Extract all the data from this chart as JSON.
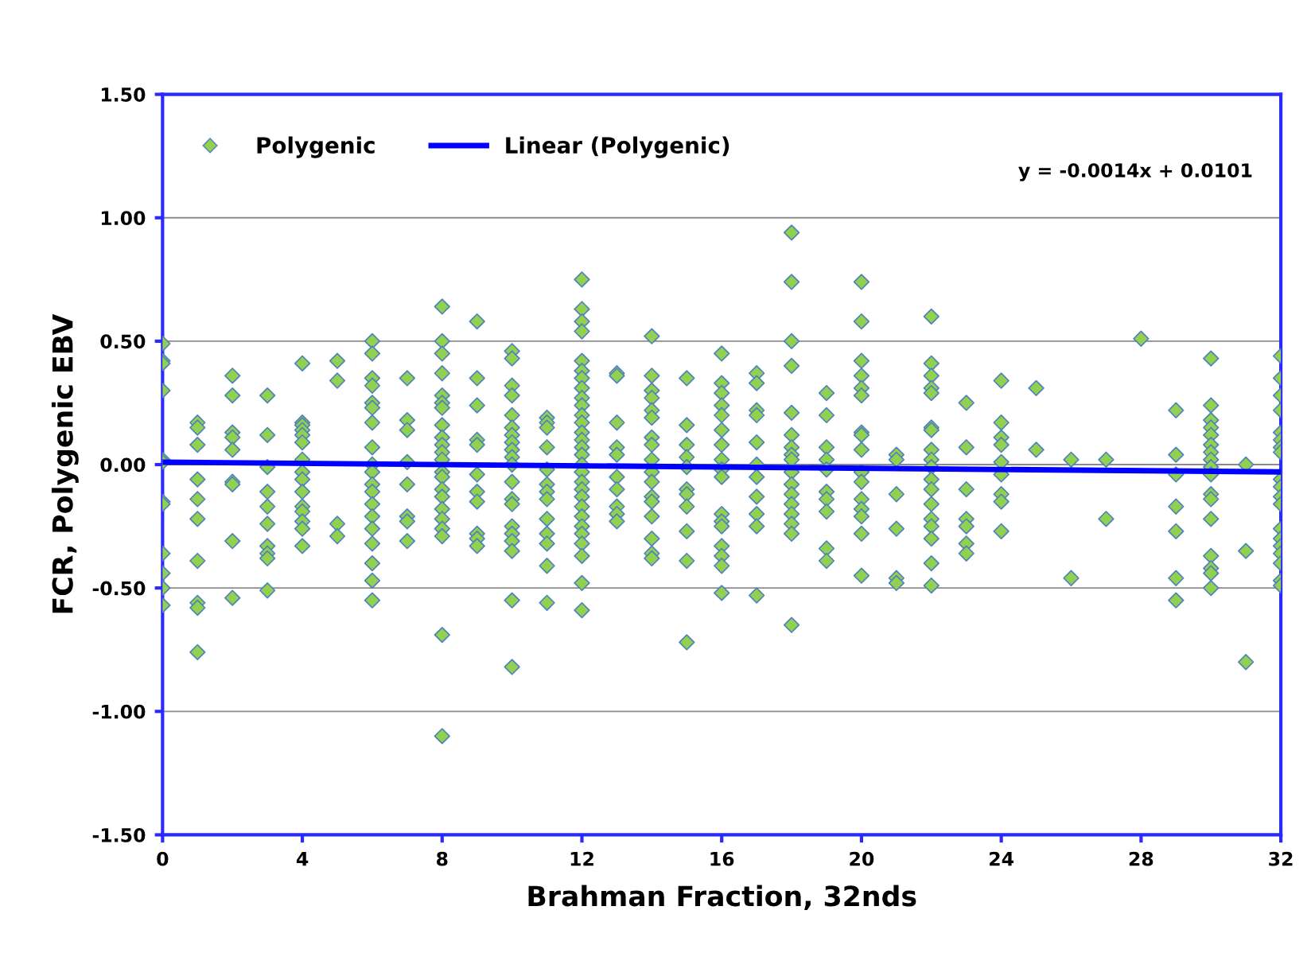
{
  "chart_data": {
    "type": "scatter",
    "xlabel": "Brahman Fraction, 32nds",
    "ylabel": "FCR, Polygenic EBV",
    "xlim": [
      0,
      32
    ],
    "xticks": [
      0,
      4,
      8,
      12,
      16,
      20,
      24,
      28,
      32
    ],
    "ylim": [
      -1.5,
      1.5
    ],
    "yticks": [
      {
        "value": -1.5,
        "label": "-1.50"
      },
      {
        "value": -1.0,
        "label": "-1.00"
      },
      {
        "value": -0.5,
        "label": "-0.50"
      },
      {
        "value": 0,
        "label": "0.00"
      },
      {
        "value": 0.5,
        "label": "0.50"
      },
      {
        "value": 1.0,
        "label": "1.00"
      },
      {
        "value": 1.5,
        "label": "1.50"
      }
    ],
    "grid": "y",
    "legend": "top left",
    "marker": "diamond",
    "annotations": [
      "y = -0.0014x + 0.0101"
    ],
    "series": [
      {
        "name": "Polygenic",
        "color": "#92d050",
        "x": [
          0,
          0,
          0,
          0,
          0,
          0,
          0,
          0,
          0,
          0,
          0,
          0,
          1,
          1,
          1,
          1,
          1,
          1,
          1,
          1,
          1,
          1,
          2,
          2,
          2,
          2,
          2,
          2,
          2,
          2,
          2,
          3,
          3,
          3,
          3,
          3,
          3,
          3,
          3,
          3,
          3,
          4,
          4,
          4,
          4,
          4,
          4,
          4,
          4,
          4,
          4,
          4,
          4,
          4,
          4,
          4,
          5,
          5,
          5,
          5,
          6,
          6,
          6,
          6,
          6,
          6,
          6,
          6,
          6,
          6,
          6,
          6,
          6,
          6,
          6,
          6,
          6,
          6,
          6,
          7,
          7,
          7,
          7,
          7,
          7,
          7,
          7,
          8,
          8,
          8,
          8,
          8,
          8,
          8,
          8,
          8,
          8,
          8,
          8,
          8,
          8,
          8,
          8,
          8,
          8,
          8,
          8,
          8,
          8,
          9,
          9,
          9,
          9,
          9,
          9,
          9,
          9,
          9,
          9,
          9,
          10,
          10,
          10,
          10,
          10,
          10,
          10,
          10,
          10,
          10,
          10,
          10,
          10,
          10,
          10,
          10,
          10,
          10,
          10,
          10,
          11,
          11,
          11,
          11,
          11,
          11,
          11,
          11,
          11,
          11,
          11,
          11,
          11,
          12,
          12,
          12,
          12,
          12,
          12,
          12,
          12,
          12,
          12,
          12,
          12,
          12,
          12,
          12,
          12,
          12,
          12,
          12,
          12,
          12,
          12,
          12,
          12,
          12,
          12,
          12,
          12,
          12,
          13,
          13,
          13,
          13,
          13,
          13,
          13,
          13,
          13,
          13,
          14,
          14,
          14,
          14,
          14,
          14,
          14,
          14,
          14,
          14,
          14,
          14,
          14,
          14,
          14,
          14,
          14,
          15,
          15,
          15,
          15,
          15,
          15,
          15,
          15,
          15,
          15,
          15,
          16,
          16,
          16,
          16,
          16,
          16,
          16,
          16,
          16,
          16,
          16,
          16,
          16,
          16,
          16,
          16,
          16,
          17,
          17,
          17,
          17,
          17,
          17,
          17,
          17,
          17,
          17,
          17,
          18,
          18,
          18,
          18,
          18,
          18,
          18,
          18,
          18,
          18,
          18,
          18,
          18,
          18,
          18,
          18,
          18,
          19,
          19,
          19,
          19,
          19,
          19,
          19,
          19,
          19,
          19,
          20,
          20,
          20,
          20,
          20,
          20,
          20,
          20,
          20,
          20,
          20,
          20,
          20,
          20,
          20,
          20,
          21,
          21,
          21,
          21,
          21,
          21,
          22,
          22,
          22,
          22,
          22,
          22,
          22,
          22,
          22,
          22,
          22,
          22,
          22,
          22,
          22,
          22,
          22,
          22,
          23,
          23,
          23,
          23,
          23,
          23,
          23,
          24,
          24,
          24,
          24,
          24,
          24,
          24,
          24,
          24,
          25,
          25,
          26,
          26,
          27,
          27,
          28,
          29,
          29,
          29,
          29,
          29,
          29,
          29,
          30,
          30,
          30,
          30,
          30,
          30,
          30,
          30,
          30,
          30,
          30,
          30,
          30,
          30,
          30,
          30,
          30,
          31,
          31,
          31,
          32,
          32,
          32,
          32,
          32,
          32,
          32,
          32,
          32,
          32,
          32,
          32,
          32,
          32,
          32,
          32,
          32,
          32,
          32
        ],
        "values": [
          0.49,
          0.42,
          0.41,
          0.3,
          0.02,
          0.01,
          -0.15,
          -0.16,
          -0.36,
          -0.44,
          -0.5,
          -0.57,
          0.17,
          0.15,
          0.08,
          -0.06,
          -0.14,
          -0.22,
          -0.39,
          -0.56,
          -0.58,
          -0.76,
          0.36,
          0.28,
          0.13,
          0.11,
          0.06,
          -0.07,
          -0.08,
          -0.31,
          -0.54,
          0.28,
          0.12,
          -0.01,
          -0.11,
          -0.17,
          -0.24,
          -0.33,
          -0.36,
          -0.38,
          -0.51,
          0.41,
          0.17,
          0.16,
          0.14,
          0.12,
          0.09,
          0.02,
          -0.03,
          -0.06,
          -0.11,
          -0.17,
          -0.19,
          -0.23,
          -0.26,
          -0.33,
          0.42,
          0.34,
          -0.24,
          -0.29,
          0.5,
          0.45,
          0.35,
          0.32,
          0.25,
          0.23,
          0.17,
          0.07,
          0.0,
          -0.03,
          -0.08,
          -0.11,
          -0.16,
          -0.21,
          -0.26,
          -0.32,
          -0.4,
          -0.47,
          -0.55,
          0.35,
          0.18,
          0.14,
          0.01,
          -0.08,
          -0.21,
          -0.23,
          -0.31,
          0.64,
          0.5,
          0.45,
          0.37,
          0.28,
          0.25,
          0.23,
          0.16,
          0.11,
          0.08,
          0.05,
          0.02,
          -0.03,
          -0.05,
          -0.1,
          -0.13,
          -0.18,
          -0.22,
          -0.26,
          -0.29,
          -0.69,
          -1.1,
          0.58,
          0.35,
          0.24,
          0.1,
          0.08,
          -0.04,
          -0.11,
          -0.15,
          -0.28,
          -0.3,
          -0.33,
          0.46,
          0.43,
          0.32,
          0.28,
          0.2,
          0.15,
          0.12,
          0.09,
          0.06,
          0.03,
          0.0,
          -0.07,
          -0.14,
          -0.16,
          -0.25,
          -0.28,
          -0.31,
          -0.35,
          -0.55,
          -0.82,
          0.19,
          0.17,
          0.15,
          0.07,
          -0.02,
          -0.08,
          -0.11,
          -0.14,
          -0.22,
          -0.28,
          -0.32,
          -0.41,
          -0.56,
          0.75,
          0.63,
          0.58,
          0.54,
          0.42,
          0.38,
          0.35,
          0.31,
          0.27,
          0.24,
          0.2,
          0.17,
          0.13,
          0.1,
          0.07,
          0.04,
          0.0,
          -0.03,
          -0.07,
          -0.1,
          -0.13,
          -0.17,
          -0.21,
          -0.25,
          -0.28,
          -0.32,
          -0.37,
          -0.48,
          -0.59,
          0.37,
          0.36,
          0.17,
          0.07,
          0.04,
          -0.05,
          -0.1,
          -0.17,
          -0.2,
          -0.23,
          0.52,
          0.36,
          0.3,
          0.27,
          0.22,
          0.19,
          0.11,
          0.08,
          0.02,
          -0.03,
          -0.07,
          -0.13,
          -0.15,
          -0.21,
          -0.3,
          -0.36,
          -0.38,
          0.35,
          0.16,
          0.08,
          0.03,
          -0.01,
          -0.1,
          -0.12,
          -0.17,
          -0.27,
          -0.39,
          -0.72,
          0.45,
          0.33,
          0.29,
          0.24,
          0.2,
          0.14,
          0.08,
          0.02,
          -0.02,
          -0.05,
          -0.2,
          -0.23,
          -0.25,
          -0.33,
          -0.37,
          -0.41,
          -0.52,
          0.37,
          0.33,
          0.22,
          0.2,
          0.09,
          0.0,
          -0.05,
          -0.13,
          -0.2,
          -0.25,
          -0.53,
          0.94,
          0.74,
          0.5,
          0.4,
          0.21,
          0.12,
          0.07,
          0.04,
          0.02,
          -0.03,
          -0.08,
          -0.12,
          -0.16,
          -0.2,
          -0.24,
          -0.28,
          -0.65,
          0.29,
          0.2,
          0.07,
          0.02,
          -0.02,
          -0.11,
          -0.14,
          -0.19,
          -0.34,
          -0.39,
          0.74,
          0.58,
          0.42,
          0.36,
          0.31,
          0.28,
          0.13,
          0.12,
          0.06,
          -0.03,
          -0.07,
          -0.14,
          -0.18,
          -0.21,
          -0.28,
          -0.45,
          0.04,
          0.02,
          -0.12,
          -0.26,
          -0.46,
          -0.48,
          0.6,
          0.41,
          0.36,
          0.31,
          0.29,
          0.15,
          0.14,
          0.06,
          0.02,
          -0.01,
          -0.06,
          -0.1,
          -0.16,
          -0.22,
          -0.25,
          -0.3,
          -0.4,
          -0.49,
          0.25,
          0.07,
          -0.1,
          -0.22,
          -0.25,
          -0.32,
          -0.36,
          0.34,
          0.17,
          0.11,
          0.08,
          0.01,
          -0.04,
          -0.12,
          -0.15,
          -0.27,
          0.31,
          0.06,
          0.02,
          -0.46,
          0.02,
          -0.22,
          0.51,
          0.22,
          0.04,
          -0.04,
          -0.17,
          -0.27,
          -0.46,
          -0.55,
          0.43,
          0.24,
          0.18,
          0.15,
          0.12,
          0.08,
          0.05,
          0.02,
          -0.01,
          -0.04,
          -0.12,
          -0.14,
          -0.22,
          -0.37,
          -0.42,
          -0.44,
          -0.5,
          0.0,
          -0.35,
          -0.8,
          0.44,
          0.35,
          0.28,
          0.22,
          0.13,
          0.1,
          0.07,
          0.05,
          -0.06,
          -0.09,
          -0.13,
          -0.16,
          -0.26,
          -0.3,
          -0.33,
          -0.36,
          -0.4,
          -0.47,
          -0.49
        ]
      },
      {
        "name": "Linear (Polygenic)",
        "type": "line",
        "color": "#0000ff",
        "line_style": "solid",
        "marker": "none",
        "x": [
          0,
          32
        ],
        "values": [
          0.01,
          -0.03
        ]
      }
    ]
  }
}
